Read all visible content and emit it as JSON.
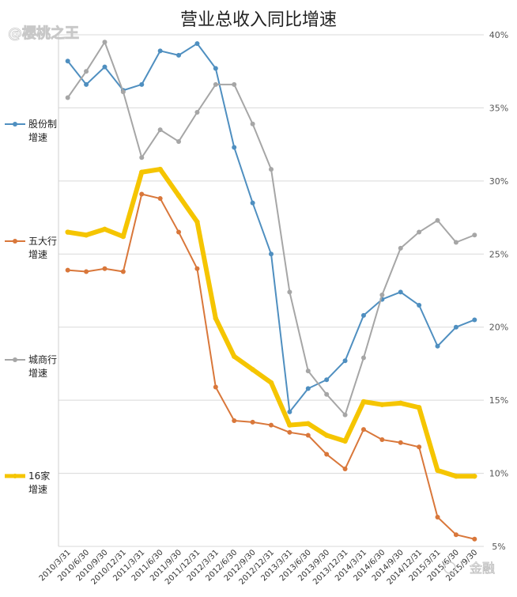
{
  "chart_data": {
    "type": "line",
    "title": "营业总收入同比增速",
    "ylim": [
      5,
      40
    ],
    "yticks": [
      "5%",
      "10%",
      "15%",
      "20%",
      "25%",
      "30%",
      "35%",
      "40%"
    ],
    "grid": true,
    "legend_position": "left",
    "categories": [
      "2010/3/31",
      "2010/6/30",
      "2010/9/30",
      "2010/12/31",
      "2011/3/31",
      "2011/6/30",
      "2011/9/30",
      "2011/12/31",
      "2012/3/31",
      "2012/6/30",
      "2012/9/30",
      "2012/12/31",
      "2013/3/31",
      "2013/6/30",
      "2013/9/30",
      "2013/12/31",
      "2014/3/31",
      "2014/6/30",
      "2014/9/30",
      "2014/12/31",
      "2015/3/31",
      "2015/6/30",
      "2015/9/30"
    ],
    "series": [
      {
        "name": "股份制增速",
        "color": "#4f8fc0",
        "width": 2,
        "values": [
          38.2,
          36.6,
          37.8,
          36.2,
          36.6,
          38.9,
          38.6,
          39.4,
          37.7,
          32.3,
          28.5,
          25.0,
          14.2,
          15.8,
          16.4,
          17.7,
          20.8,
          21.9,
          22.4,
          21.5,
          18.7,
          20.0,
          20.5
        ]
      },
      {
        "name": "五大行增速",
        "color": "#d9773a",
        "width": 2,
        "values": [
          23.9,
          23.8,
          24.0,
          23.8,
          29.1,
          28.8,
          26.5,
          24.0,
          15.9,
          13.6,
          13.5,
          13.3,
          12.8,
          12.6,
          11.3,
          10.3,
          13.0,
          12.3,
          12.1,
          11.8,
          7.0,
          5.8,
          5.5
        ]
      },
      {
        "name": "城商行增速",
        "color": "#a6a6a6",
        "width": 2,
        "values": [
          35.7,
          37.5,
          39.5,
          36.1,
          31.6,
          33.5,
          32.7,
          34.7,
          36.6,
          36.6,
          33.9,
          30.8,
          22.4,
          17.0,
          15.4,
          14.0,
          17.9,
          22.2,
          25.4,
          26.5,
          27.3,
          25.8,
          26.3
        ]
      },
      {
        "name": "16家增速",
        "color": "#f5c500",
        "width": 6,
        "values": [
          26.5,
          26.3,
          26.7,
          26.2,
          30.6,
          30.8,
          29.0,
          27.2,
          20.6,
          18.0,
          17.1,
          16.2,
          13.3,
          13.4,
          12.6,
          12.2,
          14.9,
          14.7,
          14.8,
          14.5,
          10.2,
          9.8,
          9.8
        ]
      }
    ]
  },
  "legend": [
    {
      "line1": "股份制",
      "line2": "增速"
    },
    {
      "line1": "五大行",
      "line2": "增速"
    },
    {
      "line1": "城商行",
      "line2": "增速"
    },
    {
      "line1": "16家",
      "line2": "增速"
    }
  ],
  "watermark": {
    "left": "@樱桃之王",
    "right": "金融"
  }
}
